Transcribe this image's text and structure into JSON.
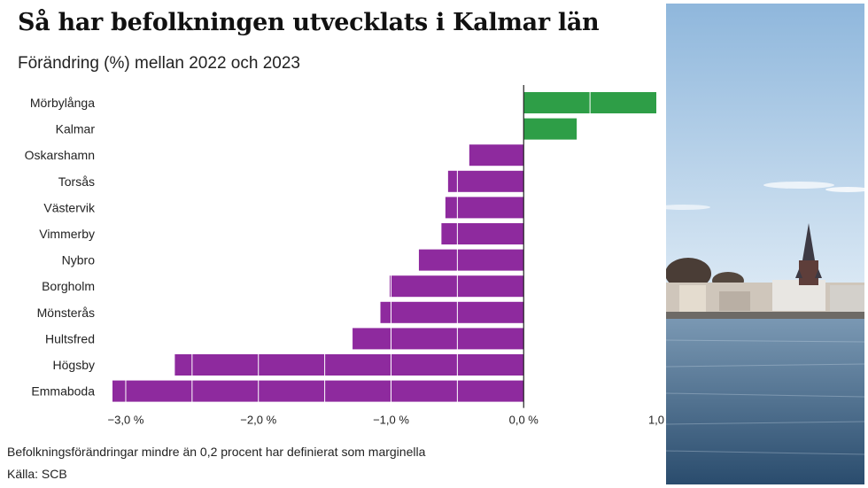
{
  "header": {
    "title": "Så har befolkningen utvecklats i Kalmar län",
    "subtitle": "Förändring (%) mellan 2022 och 2023"
  },
  "footer": {
    "note": "Befolkningsförändringar mindre än 0,2 procent har definierat som marginella",
    "source": "Källa: SCB"
  },
  "colors": {
    "positive": "#2e9e47",
    "negative": "#8e2a9e",
    "zero_line": "#222222",
    "gridline": "#ffffff"
  },
  "photo": {
    "icon": "kalmar-harbor-photo"
  },
  "chart_data": {
    "type": "bar",
    "orientation": "horizontal",
    "categories": [
      "Mörbylånga",
      "Kalmar",
      "Oskarshamn",
      "Torsås",
      "Västervik",
      "Vimmerby",
      "Nybro",
      "Borgholm",
      "Mönsterås",
      "Hultsfred",
      "Högsby",
      "Emmaboda"
    ],
    "values": [
      1.0,
      0.4,
      -0.41,
      -0.57,
      -0.59,
      -0.62,
      -0.79,
      -1.01,
      -1.08,
      -1.29,
      -2.63,
      -3.1
    ],
    "xlim": [
      -3.1,
      1.0
    ],
    "xticks": [
      -3.0,
      -2.0,
      -1.0,
      0.0,
      1.0
    ],
    "xtick_labels": [
      "−3,0 %",
      "−2,0 %",
      "−1,0 %",
      "0,0 %",
      "1,0"
    ],
    "grid": "vertical lines drawn over bars",
    "title": "",
    "xlabel": "",
    "ylabel": ""
  }
}
